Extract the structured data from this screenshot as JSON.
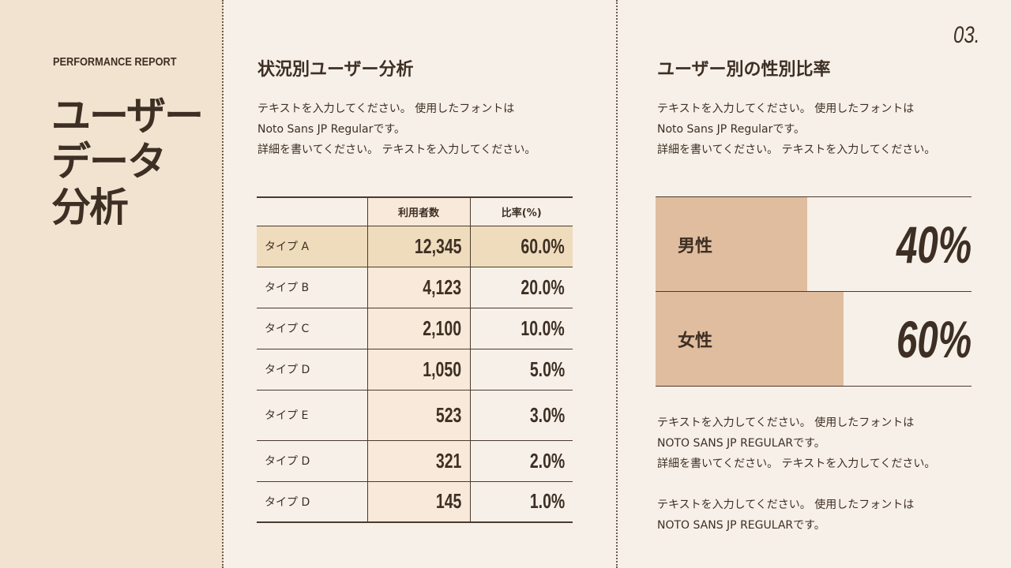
{
  "sidebar": {
    "report_label": "PERFORMANCE REPORT",
    "title_lines": [
      "ユーザー",
      "データ",
      "分析"
    ]
  },
  "page_number": "03.",
  "left_section": {
    "heading": "状況別ユーザー分析",
    "text_lines": [
      "テキストを入力してください。 使用したフォントは",
      "Noto Sans JP Regularです。",
      "詳細を書いてください。 テキストを入力してください。"
    ]
  },
  "table": {
    "headers": [
      "",
      "利用者数",
      "比率(%)"
    ],
    "rows": [
      {
        "type": "タイプ A",
        "users": "12,345",
        "ratio": "60.0%"
      },
      {
        "type": "タイプ B",
        "users": "4,123",
        "ratio": "20.0%"
      },
      {
        "type": "タイプ C",
        "users": "2,100",
        "ratio": "10.0%"
      },
      {
        "type": "タイプ D",
        "users": "1,050",
        "ratio": "5.0%"
      },
      {
        "type": "タイプ E",
        "users": "523",
        "ratio": "3.0%"
      },
      {
        "type": "タイプ D",
        "users": "321",
        "ratio": "2.0%"
      },
      {
        "type": "タイプ D",
        "users": "145",
        "ratio": "1.0%"
      }
    ],
    "highlight_color": "#efdcbd"
  },
  "right_section": {
    "heading": "ユーザー別の性別比率",
    "text_lines": [
      "テキストを入力してください。 使用したフォントは",
      "Noto Sans JP Regularです。",
      "詳細を書いてください。 テキストを入力してください。"
    ],
    "gender": [
      {
        "label": "男性",
        "value": "40%",
        "percent": 40
      },
      {
        "label": "女性",
        "value": "60%",
        "percent": 60
      }
    ],
    "bar_color": "#e0bd9e",
    "bottom_text_1": [
      "テキストを入力してください。 使用したフォントは",
      "NOTO SANS JP REGULARです。",
      "詳細を書いてください。 テキストを入力してください。"
    ],
    "bottom_text_2": [
      "テキストを入力してください。 使用したフォントは",
      "NOTO SANS JP REGULARです。"
    ]
  }
}
